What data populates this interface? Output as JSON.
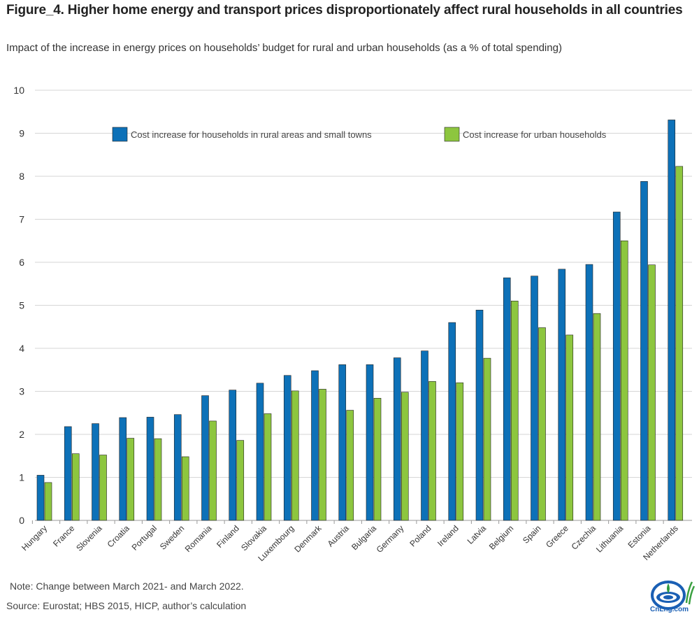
{
  "title": "Figure_4. Higher home energy and transport prices disproportionately affect rural households in all countries",
  "subtitle": "Impact of the increase in energy prices on households’ budget for rural and urban households (as a % of total spending)",
  "note": "Note: Change between March 2021- and March 2022.",
  "source": "Source: Eurostat; HBS 2015, HICP, author’s calculation",
  "logo": {
    "text": "CnLng.com",
    "icon": "cnlng-logo-icon"
  },
  "colors": {
    "rural": "#0d71b8",
    "urban": "#8dc63f",
    "grid": "#d6d6d6",
    "axis": "#999999"
  },
  "chart_data": {
    "type": "bar",
    "title": "Figure_4. Higher home energy and transport prices disproportionately affect rural households in all countries",
    "subtitle": "Impact of the increase in energy prices on households’ budget for rural and urban households (as a % of total spending)",
    "xlabel": "",
    "ylabel": "",
    "ylim": [
      0,
      10
    ],
    "yticks": [
      0,
      1,
      2,
      3,
      4,
      5,
      6,
      7,
      8,
      9,
      10
    ],
    "grid": true,
    "legend": "top",
    "categories": [
      "Hungary",
      "France",
      "Slovenia",
      "Croatia",
      "Portugal",
      "Sweden",
      "Romania",
      "Finland",
      "Slovakia",
      "Luxembourg",
      "Denmark",
      "Austria",
      "Bulgaria",
      "Germany",
      "Poland",
      "Ireland",
      "Latvia",
      "Belgium",
      "Spain",
      "Greece",
      "Czechia",
      "Lithuania",
      "Estonia",
      "Netherlands"
    ],
    "series": [
      {
        "name": "Cost increase for households in rural areas and small towns",
        "color": "#0d71b8",
        "values": [
          1.05,
          2.18,
          2.25,
          2.39,
          2.4,
          2.46,
          2.9,
          3.03,
          3.19,
          3.37,
          3.48,
          3.62,
          3.62,
          3.78,
          3.94,
          4.6,
          4.89,
          5.64,
          5.68,
          5.84,
          5.95,
          7.17,
          7.88,
          9.31
        ]
      },
      {
        "name": "Cost increase for urban households",
        "color": "#8dc63f",
        "values": [
          0.88,
          1.55,
          1.52,
          1.91,
          1.9,
          1.48,
          2.31,
          1.86,
          2.48,
          3.01,
          3.05,
          2.56,
          2.84,
          2.98,
          3.23,
          3.2,
          3.77,
          5.1,
          4.48,
          4.31,
          4.81,
          6.5,
          5.94,
          8.23
        ]
      }
    ]
  }
}
